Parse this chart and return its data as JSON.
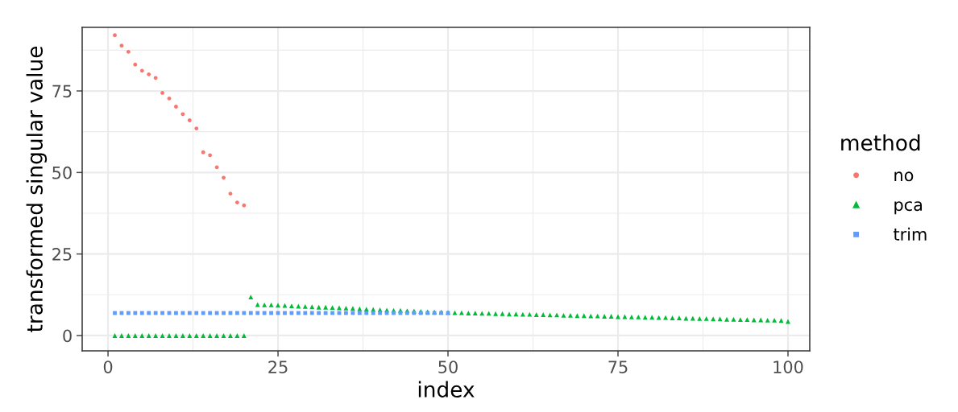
{
  "chart_data": {
    "type": "scatter",
    "xlabel": "index",
    "ylabel": "transformed singular value",
    "legend_title": "method",
    "legend": "right",
    "xlim": [
      -3.8,
      103.2
    ],
    "xticks": [
      0,
      25,
      50,
      75,
      100
    ],
    "ylim": [
      -4.7,
      94.5
    ],
    "yticks": [
      0,
      25,
      50,
      75
    ],
    "grid": true,
    "series": [
      {
        "name": "no",
        "color": "#f8766d",
        "marker": "circle",
        "x": [
          1,
          2,
          3,
          4,
          5,
          6,
          7,
          8,
          9,
          10,
          11,
          12,
          13,
          14,
          15,
          16,
          17,
          18,
          19,
          20
        ],
        "values": [
          92.1,
          88.9,
          87.0,
          83.1,
          81.2,
          80.1,
          79.0,
          74.4,
          72.7,
          70.2,
          67.9,
          66.0,
          63.5,
          56.2,
          55.3,
          51.6,
          48.4,
          43.5,
          40.8,
          39.9
        ]
      },
      {
        "name": "pca",
        "color": "#00ba38",
        "marker": "triangle",
        "x": [
          1,
          2,
          3,
          4,
          5,
          6,
          7,
          8,
          9,
          10,
          11,
          12,
          13,
          14,
          15,
          16,
          17,
          18,
          19,
          20,
          21,
          22,
          23,
          24,
          25,
          26,
          27,
          28,
          29,
          30,
          31,
          32,
          33,
          34,
          35,
          36,
          37,
          38,
          39,
          40,
          41,
          42,
          43,
          44,
          45,
          46,
          47,
          48,
          49,
          50,
          51,
          52,
          53,
          54,
          55,
          56,
          57,
          58,
          59,
          60,
          61,
          62,
          63,
          64,
          65,
          66,
          67,
          68,
          69,
          70,
          71,
          72,
          73,
          74,
          75,
          76,
          77,
          78,
          79,
          80,
          81,
          82,
          83,
          84,
          85,
          86,
          87,
          88,
          89,
          90,
          91,
          92,
          93,
          94,
          95,
          96,
          97,
          98,
          99,
          100
        ],
        "values": [
          0,
          0,
          0,
          0,
          0,
          0,
          0,
          0,
          0,
          0,
          0,
          0,
          0,
          0,
          0,
          0,
          0,
          0,
          0,
          0,
          11.8,
          9.5,
          9.4,
          9.4,
          9.3,
          9.2,
          9.1,
          9.0,
          8.9,
          8.8,
          8.7,
          8.7,
          8.6,
          8.5,
          8.4,
          8.3,
          8.2,
          8.1,
          8.0,
          7.9,
          7.8,
          7.7,
          7.7,
          7.6,
          7.5,
          7.4,
          7.3,
          7.2,
          7.2,
          7.1,
          7.0,
          7.0,
          6.9,
          6.9,
          6.8,
          6.8,
          6.7,
          6.7,
          6.6,
          6.6,
          6.5,
          6.5,
          6.4,
          6.4,
          6.3,
          6.3,
          6.2,
          6.2,
          6.1,
          6.1,
          6.0,
          6.0,
          5.9,
          5.9,
          5.8,
          5.8,
          5.7,
          5.7,
          5.6,
          5.6,
          5.5,
          5.5,
          5.4,
          5.4,
          5.3,
          5.3,
          5.2,
          5.2,
          5.1,
          5.1,
          5.0,
          5.0,
          4.9,
          4.9,
          4.8,
          4.8,
          4.7,
          4.7,
          4.6,
          4.3
        ]
      },
      {
        "name": "trim",
        "color": "#619cff",
        "marker": "square",
        "x": [
          1,
          2,
          3,
          4,
          5,
          6,
          7,
          8,
          9,
          10,
          11,
          12,
          13,
          14,
          15,
          16,
          17,
          18,
          19,
          20,
          21,
          22,
          23,
          24,
          25,
          26,
          27,
          28,
          29,
          30,
          31,
          32,
          33,
          34,
          35,
          36,
          37,
          38,
          39,
          40,
          41,
          42,
          43,
          44,
          45,
          46,
          47,
          48,
          49,
          50
        ],
        "values": [
          6.9,
          6.9,
          6.9,
          6.9,
          6.9,
          6.9,
          6.9,
          6.9,
          6.9,
          6.9,
          6.9,
          6.9,
          6.9,
          6.9,
          6.9,
          6.9,
          6.9,
          6.9,
          6.9,
          6.9,
          6.9,
          6.9,
          6.9,
          6.9,
          6.9,
          6.9,
          6.9,
          6.9,
          6.9,
          6.9,
          6.9,
          6.9,
          6.9,
          6.9,
          6.9,
          6.9,
          6.9,
          6.9,
          6.9,
          6.9,
          6.9,
          6.9,
          6.9,
          6.9,
          6.9,
          6.9,
          6.9,
          6.9,
          6.9,
          6.9
        ]
      }
    ]
  }
}
